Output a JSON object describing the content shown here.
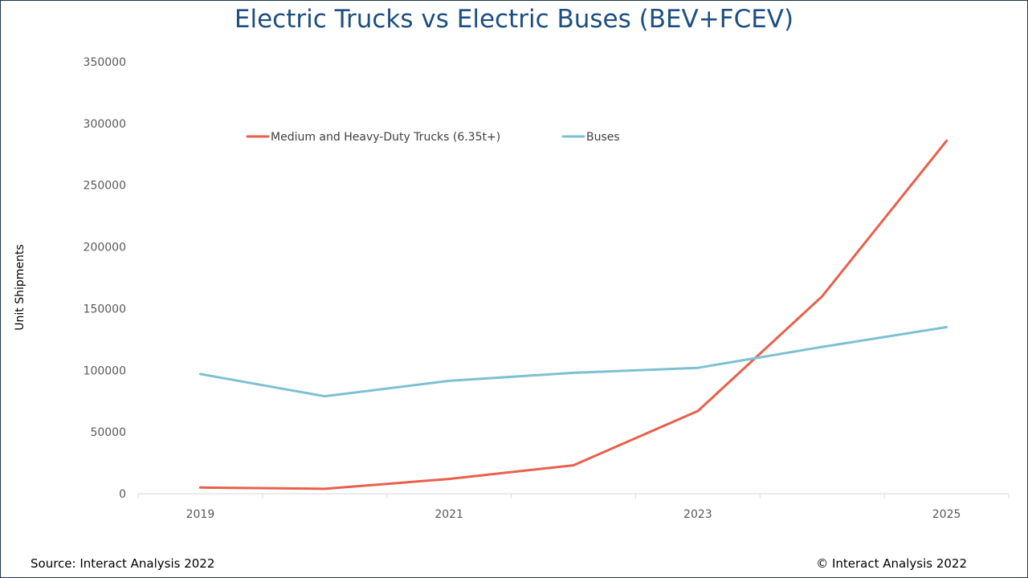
{
  "title": "Electric Trucks vs Electric Buses (BEV+FCEV)",
  "footer": {
    "source": "Source: Interact Analysis 2022",
    "copyright": "© Interact Analysis 2022"
  },
  "chart_data": {
    "type": "line",
    "title": "Electric Trucks vs Electric Buses (BEV+FCEV)",
    "xlabel": "",
    "ylabel": "Unit Shipments",
    "x": [
      2019,
      2020,
      2021,
      2022,
      2023,
      2024,
      2025
    ],
    "x_tick_labels": [
      "2019",
      "2021",
      "2023",
      "2025"
    ],
    "y_tick_labels": [
      "0",
      "50000",
      "100000",
      "150000",
      "200000",
      "250000",
      "300000",
      "350000"
    ],
    "ylim": [
      0,
      350000
    ],
    "grid": false,
    "legend_position": "top",
    "series": [
      {
        "name": "Medium and Heavy-Duty Trucks (6.35t+)",
        "color": "#e8604c",
        "values": [
          5000,
          4000,
          12000,
          23000,
          67000,
          160000,
          286000
        ]
      },
      {
        "name": "Buses",
        "color": "#7dc1d1",
        "values": [
          97000,
          79000,
          91500,
          98000,
          102000,
          119000,
          135000
        ]
      }
    ]
  }
}
